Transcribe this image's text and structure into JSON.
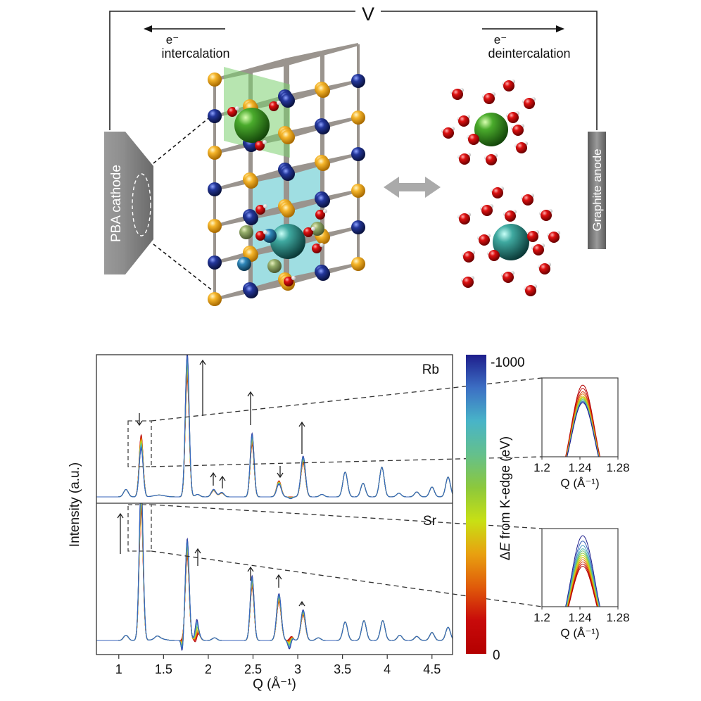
{
  "schematic": {
    "voltage_label": "V",
    "left_electron": "e⁻",
    "left_process": "intercalation",
    "right_electron": "e⁻",
    "right_process": "deintercalation",
    "cathode_label": "PBA cathode",
    "anode_label": "Graphite anode",
    "exchange_arrow": "double-headed-arrow",
    "ions": [
      {
        "name": "green-ion",
        "color": "#3a9a2a"
      },
      {
        "name": "teal-ion",
        "color": "#3aa89e"
      }
    ],
    "lattice_colors": {
      "gold_site": "#f0a820",
      "blue_site": "#1e2f8c",
      "oxygen": "#d01010",
      "hydrogen": "#f4f4f4"
    }
  },
  "chart_data": [
    {
      "type": "line",
      "panels": [
        {
          "label": "Rb",
          "peaks": [
            {
              "q": 1.08,
              "h": 0.06
            },
            {
              "q": 1.25,
              "h": 0.5,
              "trend": "down"
            },
            {
              "q": 1.765,
              "h": 0.95,
              "trend": "up"
            },
            {
              "q": 1.88,
              "h": 0.02
            },
            {
              "q": 2.06,
              "h": 0.05,
              "trend": "up"
            },
            {
              "q": 2.15,
              "h": 0.03,
              "trend": "up"
            },
            {
              "q": 2.49,
              "h": 0.42,
              "trend": "up"
            },
            {
              "q": 2.79,
              "h": 0.13,
              "trend": "down"
            },
            {
              "q": 3.06,
              "h": 0.27,
              "trend": "up"
            },
            {
              "q": 3.27,
              "h": 0.02
            },
            {
              "q": 3.53,
              "h": 0.2
            },
            {
              "q": 3.73,
              "h": 0.11
            },
            {
              "q": 3.94,
              "h": 0.24
            },
            {
              "q": 4.13,
              "h": 0.03
            },
            {
              "q": 4.33,
              "h": 0.04
            },
            {
              "q": 4.5,
              "h": 0.08
            },
            {
              "q": 4.68,
              "h": 0.16
            }
          ]
        },
        {
          "label": "Sr",
          "peaks": [
            {
              "q": 1.08,
              "h": 0.04
            },
            {
              "q": 1.25,
              "h": 0.98,
              "trend": "up"
            },
            {
              "q": 1.43,
              "h": 0.02
            },
            {
              "q": 1.765,
              "h": 0.63,
              "trend": "up"
            },
            {
              "q": 1.88,
              "h": 0.06,
              "trend": "up"
            },
            {
              "q": 2.07,
              "h": 0.02
            },
            {
              "q": 2.49,
              "h": 0.4,
              "trend": "up"
            },
            {
              "q": 2.79,
              "h": 0.29,
              "trend": "up"
            },
            {
              "q": 3.06,
              "h": 0.19,
              "trend": "up"
            },
            {
              "q": 3.23,
              "h": 0.02
            },
            {
              "q": 3.53,
              "h": 0.14
            },
            {
              "q": 3.74,
              "h": 0.15
            },
            {
              "q": 3.95,
              "h": 0.15
            },
            {
              "q": 4.14,
              "h": 0.04
            },
            {
              "q": 4.33,
              "h": 0.03
            },
            {
              "q": 4.5,
              "h": 0.06
            },
            {
              "q": 4.68,
              "h": 0.1
            }
          ]
        }
      ],
      "series_count": 12,
      "xlabel": "Q (Å⁻¹)",
      "ylabel": "Intensity (a.u.)",
      "xlim": [
        0.75,
        4.73
      ],
      "xticks": [
        "1",
        "1.5",
        "2",
        "2.5",
        "3",
        "3.5",
        "4",
        "4.5"
      ],
      "xtick_values": [
        1,
        1.5,
        2,
        2.5,
        3,
        3.5,
        4,
        4.5
      ],
      "zoom_box": {
        "q_range": [
          1.13,
          1.37
        ]
      },
      "colorbar": {
        "label": "ΔE from K-edge (eV)",
        "label_prefix": "Δ",
        "label_italic": "E",
        "label_suffix": " from K-edge (eV)",
        "top_label": "-1000",
        "bottom_label": "0",
        "range": [
          -1000,
          0
        ],
        "stops": [
          "#1e1e8c",
          "#3c6fc4",
          "#48b4c8",
          "#64c08c",
          "#8cc83c",
          "#c8e014",
          "#e8a010",
          "#e05a0a",
          "#c80a0a",
          "#b40000"
        ]
      }
    },
    {
      "type": "line",
      "title": "Rb inset",
      "xlim": [
        1.2,
        1.28
      ],
      "xticks": [
        "1.2",
        "1.24",
        "1.28"
      ],
      "xlabel": "Q (Å⁻¹)",
      "peak_center": 1.243,
      "trend": "red highest, blue lowest",
      "relative_heights": [
        1.0,
        0.97,
        0.94,
        0.92,
        0.9,
        0.89,
        0.88,
        0.87,
        0.86,
        0.85,
        0.85,
        0.84
      ]
    },
    {
      "type": "line",
      "title": "Sr inset",
      "xlim": [
        1.2,
        1.28
      ],
      "xticks": [
        "1.2",
        "1.24",
        "1.28"
      ],
      "xlabel": "Q (Å⁻¹)",
      "peak_center": 1.243,
      "trend": "blue highest, red lowest",
      "relative_heights": [
        1.0,
        0.95,
        0.91,
        0.88,
        0.86,
        0.84,
        0.82,
        0.8,
        0.78,
        0.76,
        0.74,
        0.72
      ]
    }
  ]
}
